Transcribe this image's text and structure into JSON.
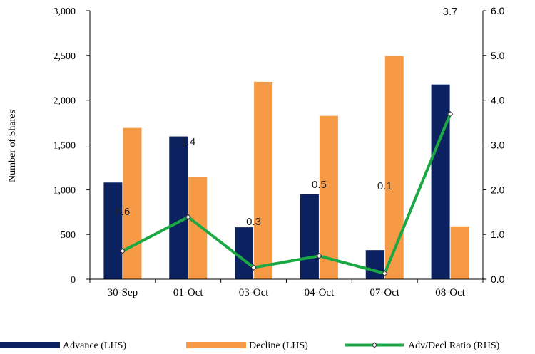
{
  "chart_data": {
    "type": "bar",
    "title": "",
    "xlabel": "",
    "ylabel": "Number of Shares",
    "categories": [
      "30-Sep",
      "01-Oct",
      "03-Oct",
      "04-Oct",
      "07-Oct",
      "08-Oct"
    ],
    "ylim": [
      0,
      3000
    ],
    "yticks": [
      "0",
      "500",
      "1,000",
      "1,500",
      "2,000",
      "2,500",
      "3,000"
    ],
    "y2lim": [
      0,
      6.0
    ],
    "y2ticks": [
      "0.0",
      "1.0",
      "2.0",
      "3.0",
      "4.0",
      "5.0",
      "6.0"
    ],
    "grid": false,
    "legend_position": "bottom",
    "series": [
      {
        "name": "Advance (LHS)",
        "type": "bar",
        "axis": "left",
        "color": "#0b2160",
        "values": [
          1080,
          1595,
          580,
          950,
          325,
          2175
        ]
      },
      {
        "name": "Decline (LHS)",
        "type": "bar",
        "axis": "left",
        "color": "#f79a46",
        "values": [
          1690,
          1145,
          2205,
          1825,
          2495,
          590
        ]
      },
      {
        "name": "Adv/Decl Ratio (RHS)",
        "type": "line",
        "axis": "right",
        "color": "#1aa843",
        "values": [
          0.63,
          1.39,
          0.26,
          0.52,
          0.13,
          3.69
        ],
        "labels": [
          "0.6",
          "1.4",
          "0.3",
          "0.5",
          "0.1",
          "3.7"
        ]
      }
    ]
  }
}
